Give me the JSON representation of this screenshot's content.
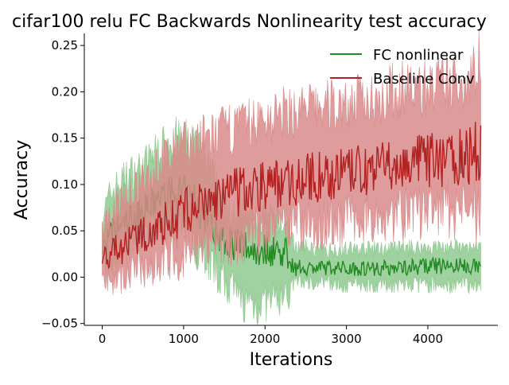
{
  "chart_data": {
    "type": "line",
    "title": "cifar100 relu FC Backwards Nonlinearity test accuracy",
    "xlabel": "Iterations",
    "ylabel": "Accuracy",
    "xlim": [
      -220,
      4860
    ],
    "ylim": [
      -0.052,
      0.263
    ],
    "xticks": [
      0,
      1000,
      2000,
      3000,
      4000
    ],
    "xtick_labels": [
      "0",
      "1000",
      "2000",
      "3000",
      "4000"
    ],
    "yticks": [
      -0.05,
      0.0,
      0.05,
      0.1,
      0.15,
      0.2,
      0.25
    ],
    "ytick_labels": [
      "−0.05",
      "0.00",
      "0.05",
      "0.10",
      "0.15",
      "0.20",
      "0.25"
    ],
    "grid": false,
    "legend_position": "top-right",
    "series": [
      {
        "name": "FC nonlinear",
        "color": "#228b22",
        "band_color": "#8fc98f",
        "x": [
          0,
          100,
          300,
          500,
          700,
          900,
          1100,
          1300,
          1450,
          1550,
          1700,
          1900,
          2100,
          2300,
          2350,
          2600,
          3000,
          3500,
          4000,
          4300,
          4650
        ],
        "y": [
          0.03,
          0.045,
          0.06,
          0.07,
          0.085,
          0.09,
          0.085,
          0.065,
          0.045,
          0.04,
          0.035,
          0.03,
          0.03,
          0.025,
          0.01,
          0.01,
          0.01,
          0.01,
          0.012,
          0.012,
          0.012
        ],
        "lower": [
          0.01,
          0.015,
          0.03,
          0.04,
          0.055,
          0.055,
          0.04,
          0.02,
          0.0,
          -0.01,
          -0.025,
          -0.03,
          -0.025,
          -0.02,
          -0.005,
          -0.005,
          -0.008,
          -0.008,
          -0.008,
          -0.008,
          -0.008
        ],
        "upper": [
          0.065,
          0.09,
          0.11,
          0.12,
          0.14,
          0.15,
          0.145,
          0.12,
          0.09,
          0.08,
          0.07,
          0.065,
          0.06,
          0.055,
          0.035,
          0.03,
          0.03,
          0.03,
          0.032,
          0.032,
          0.03
        ]
      },
      {
        "name": "Baseline Conv",
        "color": "#b22222",
        "band_color": "#d98b8b",
        "x": [
          0,
          200,
          500,
          800,
          1000,
          1300,
          1600,
          2000,
          2400,
          2800,
          3200,
          3600,
          4000,
          4400,
          4650
        ],
        "y": [
          0.02,
          0.03,
          0.045,
          0.06,
          0.07,
          0.08,
          0.09,
          0.1,
          0.105,
          0.11,
          0.115,
          0.12,
          0.125,
          0.13,
          0.135
        ],
        "lower": [
          -0.005,
          0.0,
          0.01,
          0.02,
          0.025,
          0.035,
          0.04,
          0.05,
          0.055,
          0.06,
          0.065,
          0.07,
          0.07,
          0.075,
          0.07
        ],
        "upper": [
          0.05,
          0.08,
          0.1,
          0.13,
          0.14,
          0.15,
          0.16,
          0.17,
          0.18,
          0.185,
          0.19,
          0.2,
          0.205,
          0.21,
          0.23
        ]
      }
    ]
  }
}
